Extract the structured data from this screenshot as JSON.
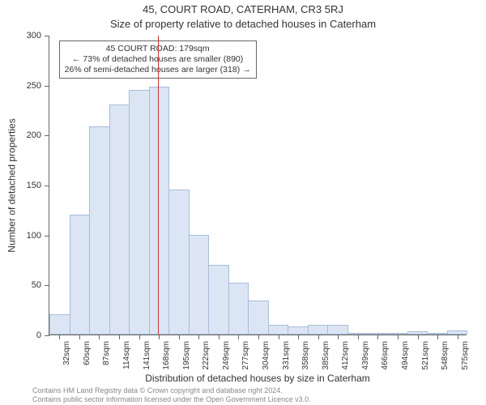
{
  "title": "45, COURT ROAD, CATERHAM, CR3 5RJ",
  "subtitle": "Size of property relative to detached houses in Caterham",
  "ylabel": "Number of detached properties",
  "xlabel": "Distribution of detached houses by size in Caterham",
  "chart": {
    "type": "histogram",
    "background_color": "#ffffff",
    "bar_fill": "#dbe5f4",
    "bar_stroke": "#a9bdd8",
    "axis_color": "#666666",
    "text_color": "#333333",
    "marker_color": "#cc3333",
    "ylim": [
      0,
      300
    ],
    "yticks": [
      0,
      50,
      100,
      150,
      200,
      250,
      300
    ],
    "x_categories": [
      "32sqm",
      "60sqm",
      "87sqm",
      "114sqm",
      "141sqm",
      "168sqm",
      "195sqm",
      "222sqm",
      "249sqm",
      "277sqm",
      "304sqm",
      "331sqm",
      "358sqm",
      "385sqm",
      "412sqm",
      "439sqm",
      "466sqm",
      "494sqm",
      "521sqm",
      "548sqm",
      "575sqm"
    ],
    "values": [
      20,
      120,
      208,
      230,
      245,
      248,
      145,
      100,
      70,
      52,
      34,
      10,
      8,
      10,
      10,
      2,
      2,
      2,
      3,
      2,
      4
    ],
    "marker_index": 5.44,
    "title_fontsize": 13,
    "label_fontsize": 12,
    "tick_fontsize": 11
  },
  "annotation": {
    "line1": "45 COURT ROAD: 179sqm",
    "line2": "← 73% of detached houses are smaller (890)",
    "line3": "26% of semi-detached houses are larger (318) →"
  },
  "footer": {
    "line1": "Contains HM Land Registry data © Crown copyright and database right 2024.",
    "line2": "Contains public sector information licensed under the Open Government Licence v3.0."
  }
}
